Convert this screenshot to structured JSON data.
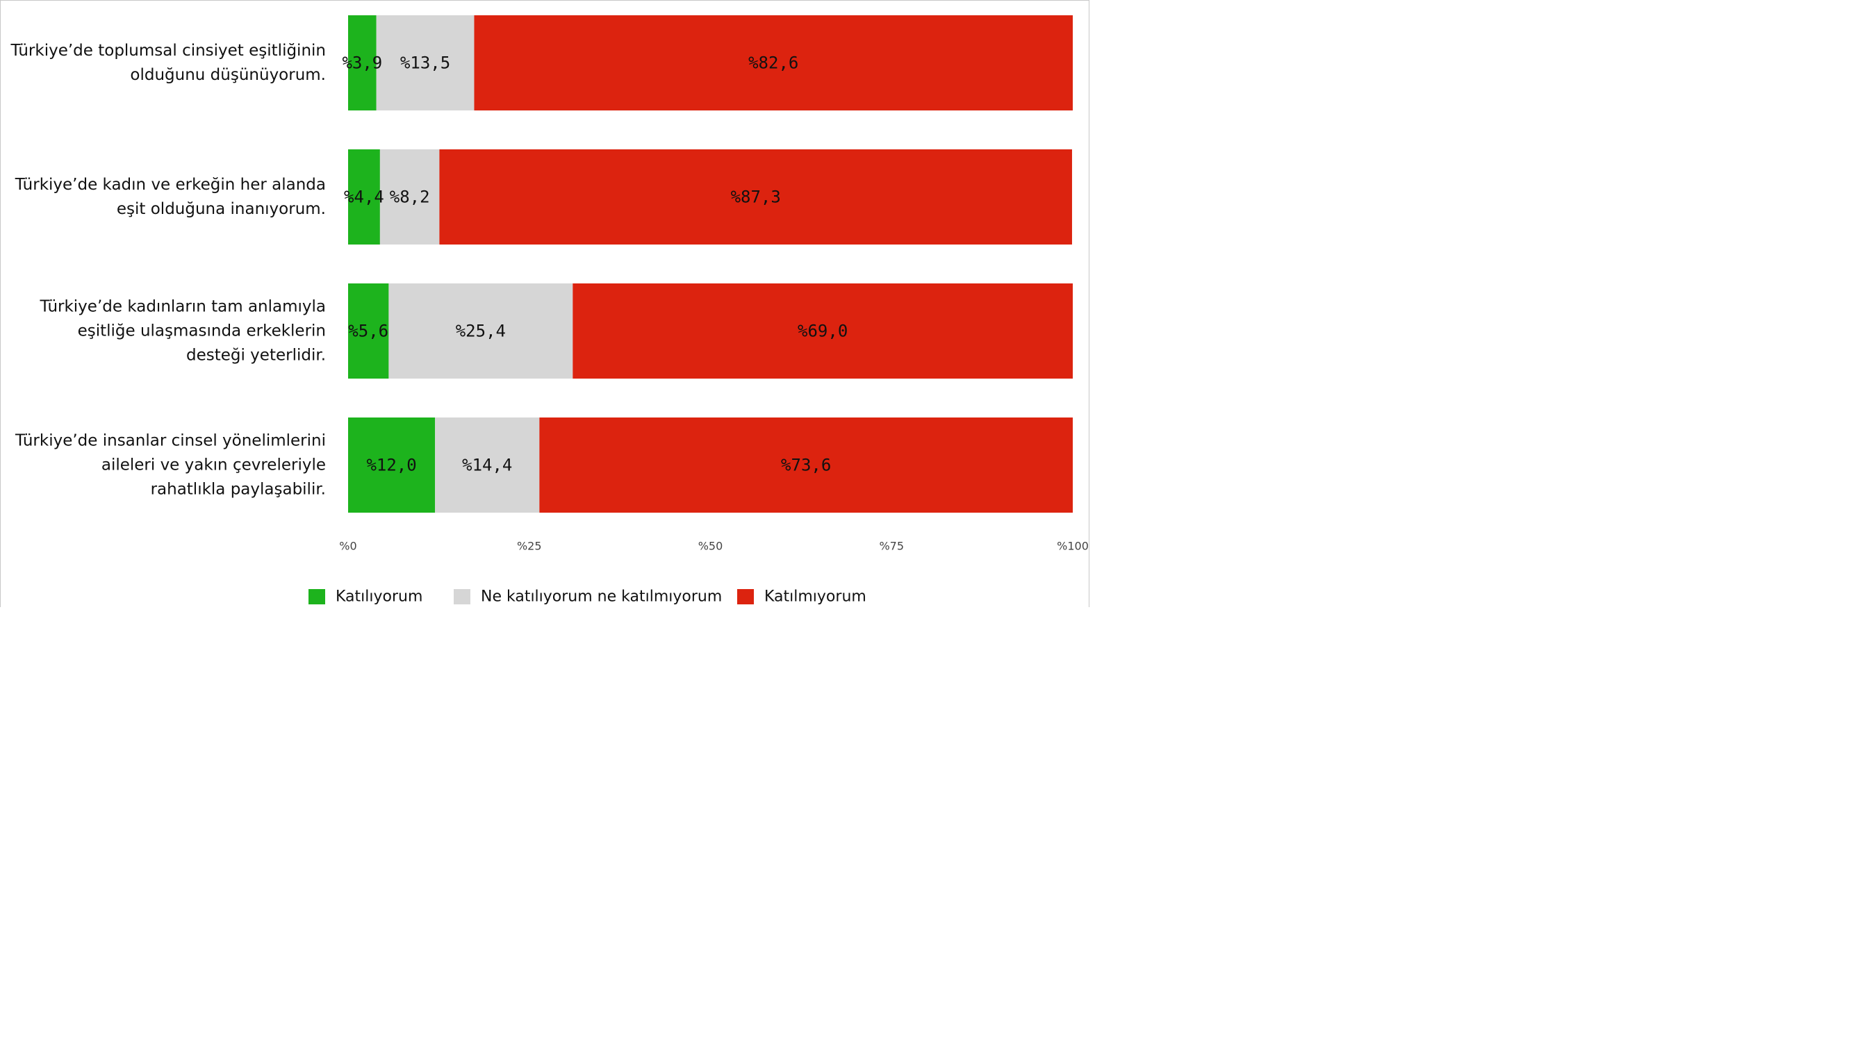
{
  "chart_data": {
    "type": "bar",
    "orientation": "horizontal",
    "stacked": true,
    "categories": [
      [
        "Türkiye’de toplumsal cinsiyet eşitliğinin",
        "olduğunu düşünüyorum."
      ],
      [
        "Türkiye’de kadın ve erkeğin her alanda",
        "eşit olduğuna inanıyorum."
      ],
      [
        "Türkiye’de kadınların tam anlamıyla",
        "eşitliğe ulaşmasında erkeklerin",
        "desteği yeterlidir."
      ],
      [
        "Türkiye’de insanlar cinsel yönelimlerini",
        "aileleri ve yakın çevreleriyle",
        "rahatlıkla paylaşabilir."
      ]
    ],
    "series": [
      {
        "name": "Katılıyorum",
        "color": "#1db31d",
        "values": [
          3.9,
          4.4,
          5.6,
          12.0
        ],
        "labels": [
          "%3,9",
          "%4,4",
          "%5,6",
          "%12,0"
        ]
      },
      {
        "name": "Ne katılıyorum ne katılmıyorum",
        "color": "#d6d6d6",
        "values": [
          13.5,
          8.2,
          25.4,
          14.4
        ],
        "labels": [
          "%13,5",
          "%8,2",
          "%25,4",
          "%14,4"
        ]
      },
      {
        "name": "Katılmıyorum",
        "color": "#dc230f",
        "values": [
          82.6,
          87.3,
          69.0,
          73.6
        ],
        "labels": [
          "%82,6",
          "%87,3",
          "%69,0",
          "%73,6"
        ]
      }
    ],
    "xlim": [
      0,
      100
    ],
    "xticks": [
      0,
      25,
      50,
      75,
      100
    ],
    "xtick_labels": [
      "%0",
      "%25",
      "%50",
      "%75",
      "%100"
    ],
    "legend_position": "bottom",
    "grid": false
  }
}
